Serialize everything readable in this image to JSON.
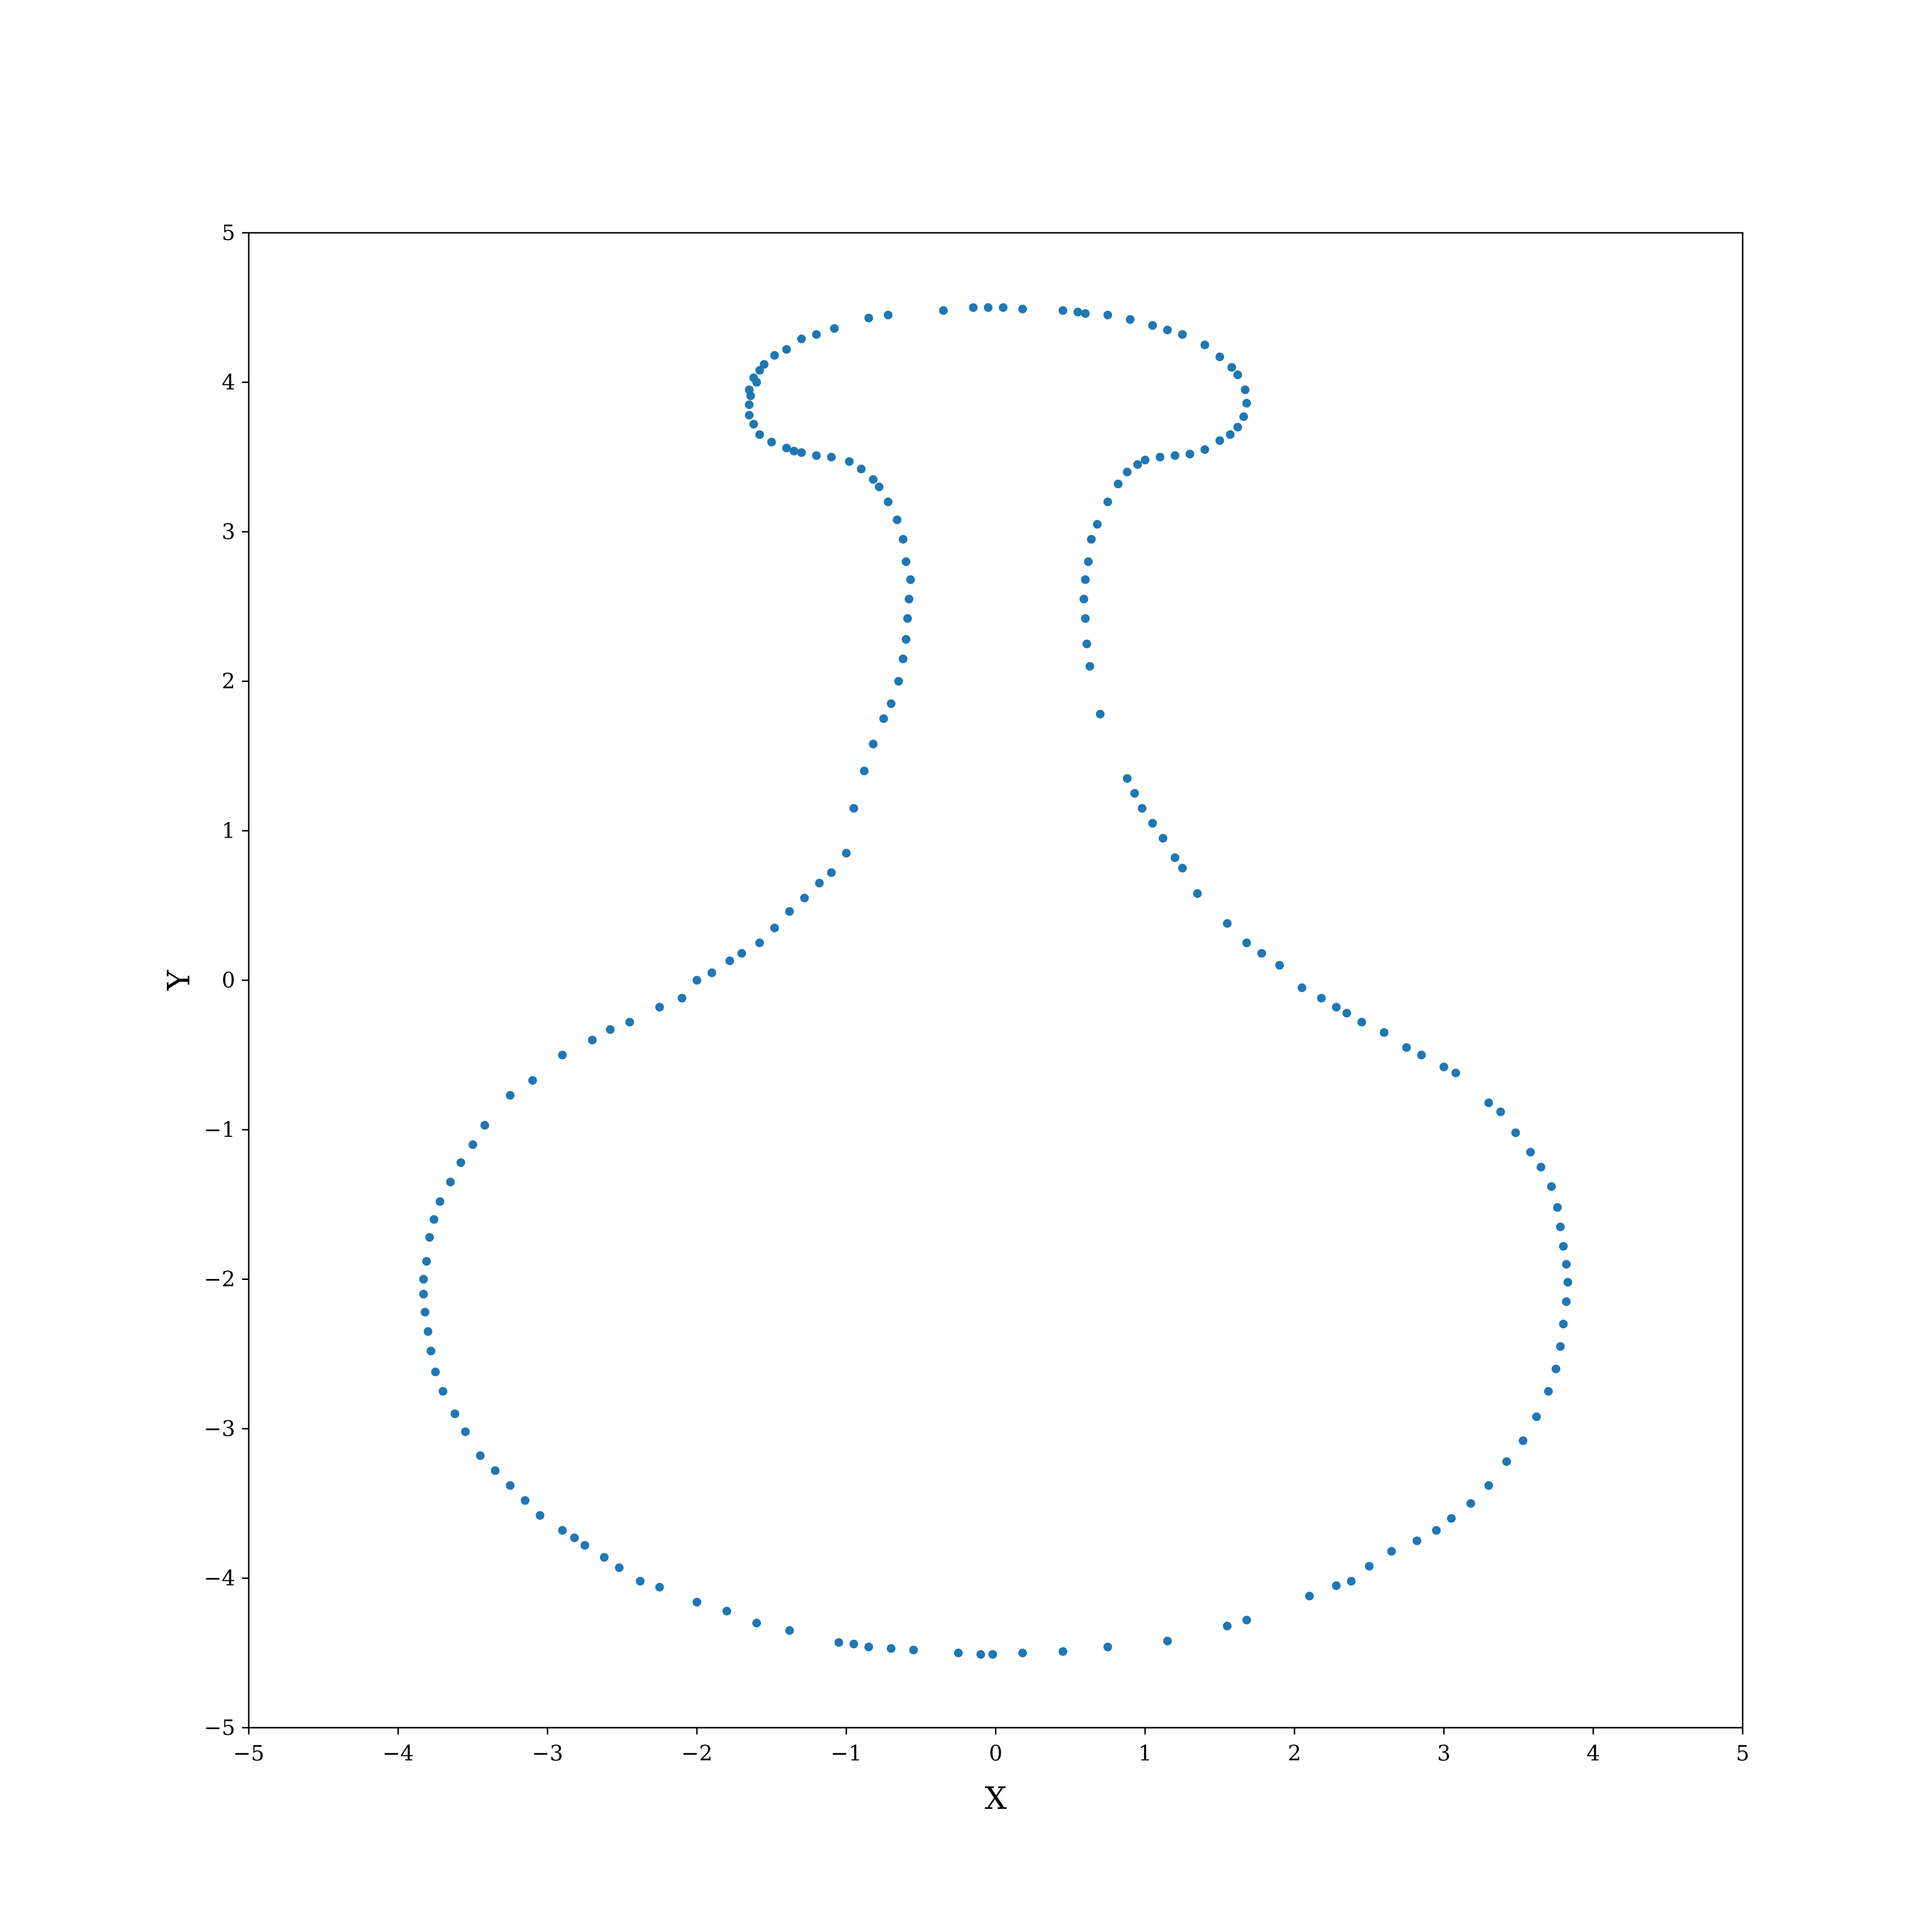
{
  "chart_data": {
    "type": "scatter",
    "title": "",
    "xlabel": "X",
    "ylabel": "Y",
    "xlim": [
      -5,
      5
    ],
    "ylim": [
      -5,
      5
    ],
    "xticks": [
      -5,
      -4,
      -3,
      -2,
      -1,
      0,
      1,
      2,
      3,
      4,
      5
    ],
    "yticks": [
      -5,
      -4,
      -3,
      -2,
      -1,
      0,
      1,
      2,
      3,
      4,
      5
    ],
    "xtick_labels": [
      "−5",
      "−4",
      "−3",
      "−2",
      "−1",
      "0",
      "1",
      "2",
      "3",
      "4",
      "5"
    ],
    "ytick_labels": [
      "−5",
      "−4",
      "−3",
      "−2",
      "−1",
      "0",
      "1",
      "2",
      "3",
      "4",
      "5"
    ],
    "grid": false,
    "legend": "none",
    "marker_color": "#1f77b4",
    "series": [
      {
        "points": [
          [
            -1.65,
            3.85
          ],
          [
            -1.65,
            3.95
          ],
          [
            -1.62,
            4.03
          ],
          [
            -1.58,
            4.08
          ],
          [
            -1.55,
            4.12
          ],
          [
            -1.48,
            4.18
          ],
          [
            -1.4,
            4.22
          ],
          [
            -1.3,
            4.29
          ],
          [
            -1.2,
            4.32
          ],
          [
            -1.08,
            4.36
          ],
          [
            -0.85,
            4.43
          ],
          [
            -0.72,
            4.45
          ],
          [
            -0.35,
            4.48
          ],
          [
            -0.15,
            4.5
          ],
          [
            -0.05,
            4.5
          ],
          [
            0.05,
            4.5
          ],
          [
            0.18,
            4.49
          ],
          [
            0.45,
            4.48
          ],
          [
            0.6,
            4.46
          ],
          [
            0.75,
            4.45
          ],
          [
            0.9,
            4.42
          ],
          [
            1.05,
            4.38
          ],
          [
            1.15,
            4.35
          ],
          [
            1.25,
            4.32
          ],
          [
            1.4,
            4.25
          ],
          [
            1.5,
            4.17
          ],
          [
            1.58,
            4.1
          ],
          [
            1.62,
            4.05
          ],
          [
            1.67,
            3.95
          ],
          [
            1.68,
            3.86
          ],
          [
            1.66,
            3.77
          ],
          [
            1.62,
            3.7
          ],
          [
            1.57,
            3.65
          ],
          [
            1.5,
            3.61
          ],
          [
            1.4,
            3.55
          ],
          [
            1.3,
            3.52
          ],
          [
            1.2,
            3.51
          ],
          [
            1.1,
            3.5
          ],
          [
            1.0,
            3.48
          ],
          [
            0.95,
            3.45
          ],
          [
            0.88,
            3.4
          ],
          [
            0.82,
            3.32
          ],
          [
            0.75,
            3.2
          ],
          [
            0.68,
            3.05
          ],
          [
            0.64,
            2.95
          ],
          [
            0.62,
            2.8
          ],
          [
            0.6,
            2.68
          ],
          [
            0.59,
            2.55
          ],
          [
            0.6,
            2.42
          ],
          [
            0.61,
            2.25
          ],
          [
            0.63,
            2.1
          ],
          [
            0.7,
            1.78
          ],
          [
            0.88,
            1.35
          ],
          [
            0.93,
            1.25
          ],
          [
            0.98,
            1.15
          ],
          [
            1.05,
            1.05
          ],
          [
            1.12,
            0.95
          ],
          [
            1.2,
            0.82
          ],
          [
            1.25,
            0.75
          ],
          [
            1.35,
            0.58
          ],
          [
            1.55,
            0.38
          ],
          [
            1.68,
            0.25
          ],
          [
            1.78,
            0.18
          ],
          [
            1.9,
            0.1
          ],
          [
            2.05,
            -0.05
          ],
          [
            2.18,
            -0.12
          ],
          [
            2.28,
            -0.18
          ],
          [
            2.35,
            -0.22
          ],
          [
            2.45,
            -0.28
          ],
          [
            2.6,
            -0.35
          ],
          [
            2.75,
            -0.45
          ],
          [
            2.85,
            -0.5
          ],
          [
            3.0,
            -0.58
          ],
          [
            3.08,
            -0.62
          ],
          [
            3.3,
            -0.82
          ],
          [
            3.38,
            -0.88
          ],
          [
            3.48,
            -1.02
          ],
          [
            3.58,
            -1.15
          ],
          [
            3.65,
            -1.25
          ],
          [
            3.72,
            -1.38
          ],
          [
            3.76,
            -1.52
          ],
          [
            3.78,
            -1.65
          ],
          [
            3.8,
            -1.78
          ],
          [
            3.82,
            -1.9
          ],
          [
            3.83,
            -2.02
          ],
          [
            3.82,
            -2.15
          ],
          [
            3.8,
            -2.3
          ],
          [
            3.78,
            -2.45
          ],
          [
            3.75,
            -2.6
          ],
          [
            3.7,
            -2.75
          ],
          [
            3.62,
            -2.92
          ],
          [
            3.53,
            -3.08
          ],
          [
            3.42,
            -3.22
          ],
          [
            3.3,
            -3.38
          ],
          [
            3.18,
            -3.5
          ],
          [
            3.05,
            -3.6
          ],
          [
            2.95,
            -3.68
          ],
          [
            2.82,
            -3.75
          ],
          [
            2.65,
            -3.82
          ],
          [
            2.5,
            -3.92
          ],
          [
            2.38,
            -4.02
          ],
          [
            2.28,
            -4.05
          ],
          [
            2.1,
            -4.12
          ],
          [
            1.68,
            -4.28
          ],
          [
            1.55,
            -4.32
          ],
          [
            1.15,
            -4.42
          ],
          [
            0.75,
            -4.46
          ],
          [
            0.45,
            -4.49
          ],
          [
            0.18,
            -4.5
          ],
          [
            -0.02,
            -4.51
          ],
          [
            -0.1,
            -4.51
          ],
          [
            -0.25,
            -4.5
          ],
          [
            -0.55,
            -4.48
          ],
          [
            -0.7,
            -4.47
          ],
          [
            -0.85,
            -4.46
          ],
          [
            -0.95,
            -4.44
          ],
          [
            -1.05,
            -4.43
          ],
          [
            -1.38,
            -4.35
          ],
          [
            -1.6,
            -4.3
          ],
          [
            -1.8,
            -4.22
          ],
          [
            -2.0,
            -4.16
          ],
          [
            -2.25,
            -4.06
          ],
          [
            -2.38,
            -4.02
          ],
          [
            -2.52,
            -3.93
          ],
          [
            -2.62,
            -3.86
          ],
          [
            -2.75,
            -3.78
          ],
          [
            -2.82,
            -3.73
          ],
          [
            -2.9,
            -3.68
          ],
          [
            -3.05,
            -3.58
          ],
          [
            -3.15,
            -3.48
          ],
          [
            -3.25,
            -3.38
          ],
          [
            -3.35,
            -3.28
          ],
          [
            -3.45,
            -3.18
          ],
          [
            -3.55,
            -3.02
          ],
          [
            -3.62,
            -2.9
          ],
          [
            -3.7,
            -2.75
          ],
          [
            -3.75,
            -2.62
          ],
          [
            -3.78,
            -2.48
          ],
          [
            -3.8,
            -2.35
          ],
          [
            -3.82,
            -2.22
          ],
          [
            -3.83,
            -2.1
          ],
          [
            -3.83,
            -2.0
          ],
          [
            -3.81,
            -1.88
          ],
          [
            -3.79,
            -1.72
          ],
          [
            -3.76,
            -1.6
          ],
          [
            -3.72,
            -1.48
          ],
          [
            -3.65,
            -1.35
          ],
          [
            -3.58,
            -1.22
          ],
          [
            -3.5,
            -1.1
          ],
          [
            -3.42,
            -0.97
          ],
          [
            -3.25,
            -0.77
          ],
          [
            -3.1,
            -0.67
          ],
          [
            -2.9,
            -0.5
          ],
          [
            -2.7,
            -0.4
          ],
          [
            -2.58,
            -0.33
          ],
          [
            -2.45,
            -0.28
          ],
          [
            -2.25,
            -0.18
          ],
          [
            -2.1,
            -0.12
          ],
          [
            -2.0,
            0.0
          ],
          [
            -1.9,
            0.05
          ],
          [
            -1.78,
            0.13
          ],
          [
            -1.7,
            0.18
          ],
          [
            -1.58,
            0.25
          ],
          [
            -1.48,
            0.35
          ],
          [
            -1.38,
            0.46
          ],
          [
            -1.28,
            0.55
          ],
          [
            -1.18,
            0.65
          ],
          [
            -1.1,
            0.72
          ],
          [
            -1.0,
            0.85
          ],
          [
            -0.95,
            1.15
          ],
          [
            -0.88,
            1.4
          ],
          [
            -0.82,
            1.58
          ],
          [
            -0.75,
            1.75
          ],
          [
            -0.7,
            1.85
          ],
          [
            -0.65,
            2.0
          ],
          [
            -0.62,
            2.15
          ],
          [
            -0.6,
            2.28
          ],
          [
            -0.59,
            2.42
          ],
          [
            -0.58,
            2.55
          ],
          [
            -0.57,
            2.68
          ],
          [
            -0.6,
            2.8
          ],
          [
            -0.62,
            2.95
          ],
          [
            -0.66,
            3.08
          ],
          [
            -0.72,
            3.2
          ],
          [
            -0.78,
            3.3
          ],
          [
            -0.82,
            3.35
          ],
          [
            -0.9,
            3.42
          ],
          [
            -0.98,
            3.47
          ],
          [
            -1.1,
            3.5
          ],
          [
            -1.2,
            3.51
          ],
          [
            -1.3,
            3.53
          ],
          [
            -1.4,
            3.56
          ],
          [
            -1.5,
            3.6
          ],
          [
            -1.58,
            3.65
          ],
          [
            -1.62,
            3.72
          ],
          [
            -1.65,
            3.78
          ],
          [
            -1.64,
            3.91
          ],
          [
            -1.6,
            4.0
          ],
          [
            0.55,
            4.47
          ],
          [
            -1.35,
            3.54
          ]
        ]
      }
    ]
  }
}
